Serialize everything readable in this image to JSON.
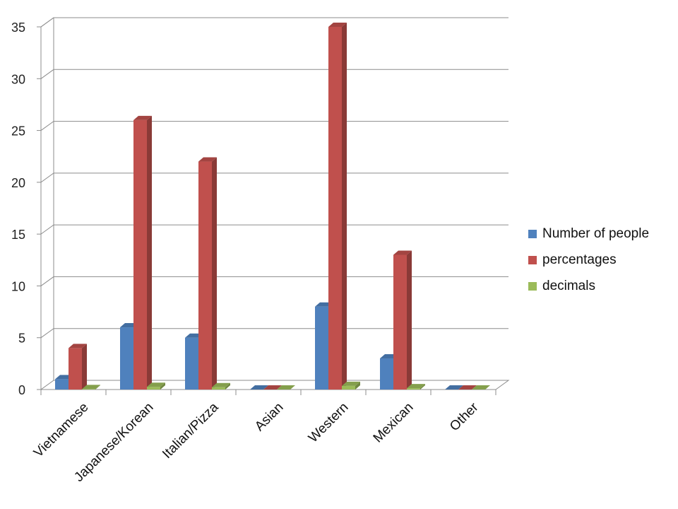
{
  "chart_data": {
    "type": "bar",
    "title": "",
    "xlabel": "",
    "ylabel": "",
    "categories": [
      "Vietnamese",
      "Japanese/Korean",
      "Italian/Pizza",
      "Asian",
      "Western",
      "Mexican",
      "Other"
    ],
    "series": [
      {
        "name": "Number of people",
        "color": "#4F81BD",
        "values": [
          1,
          6,
          5,
          0,
          8,
          3,
          0
        ]
      },
      {
        "name": "percentages",
        "color": "#C0504D",
        "values": [
          4,
          26,
          22,
          0,
          35,
          13,
          0
        ]
      },
      {
        "name": "decimals",
        "color": "#9BBB59",
        "values": [
          0.04,
          0.26,
          0.22,
          0,
          0.35,
          0.13,
          0
        ]
      }
    ],
    "ylim": [
      0,
      35
    ],
    "yticks": [
      "0",
      "5",
      "10",
      "15",
      "20",
      "25",
      "30",
      "35"
    ],
    "grid": true,
    "legend_position": "right",
    "style": "3d-clustered-column"
  }
}
